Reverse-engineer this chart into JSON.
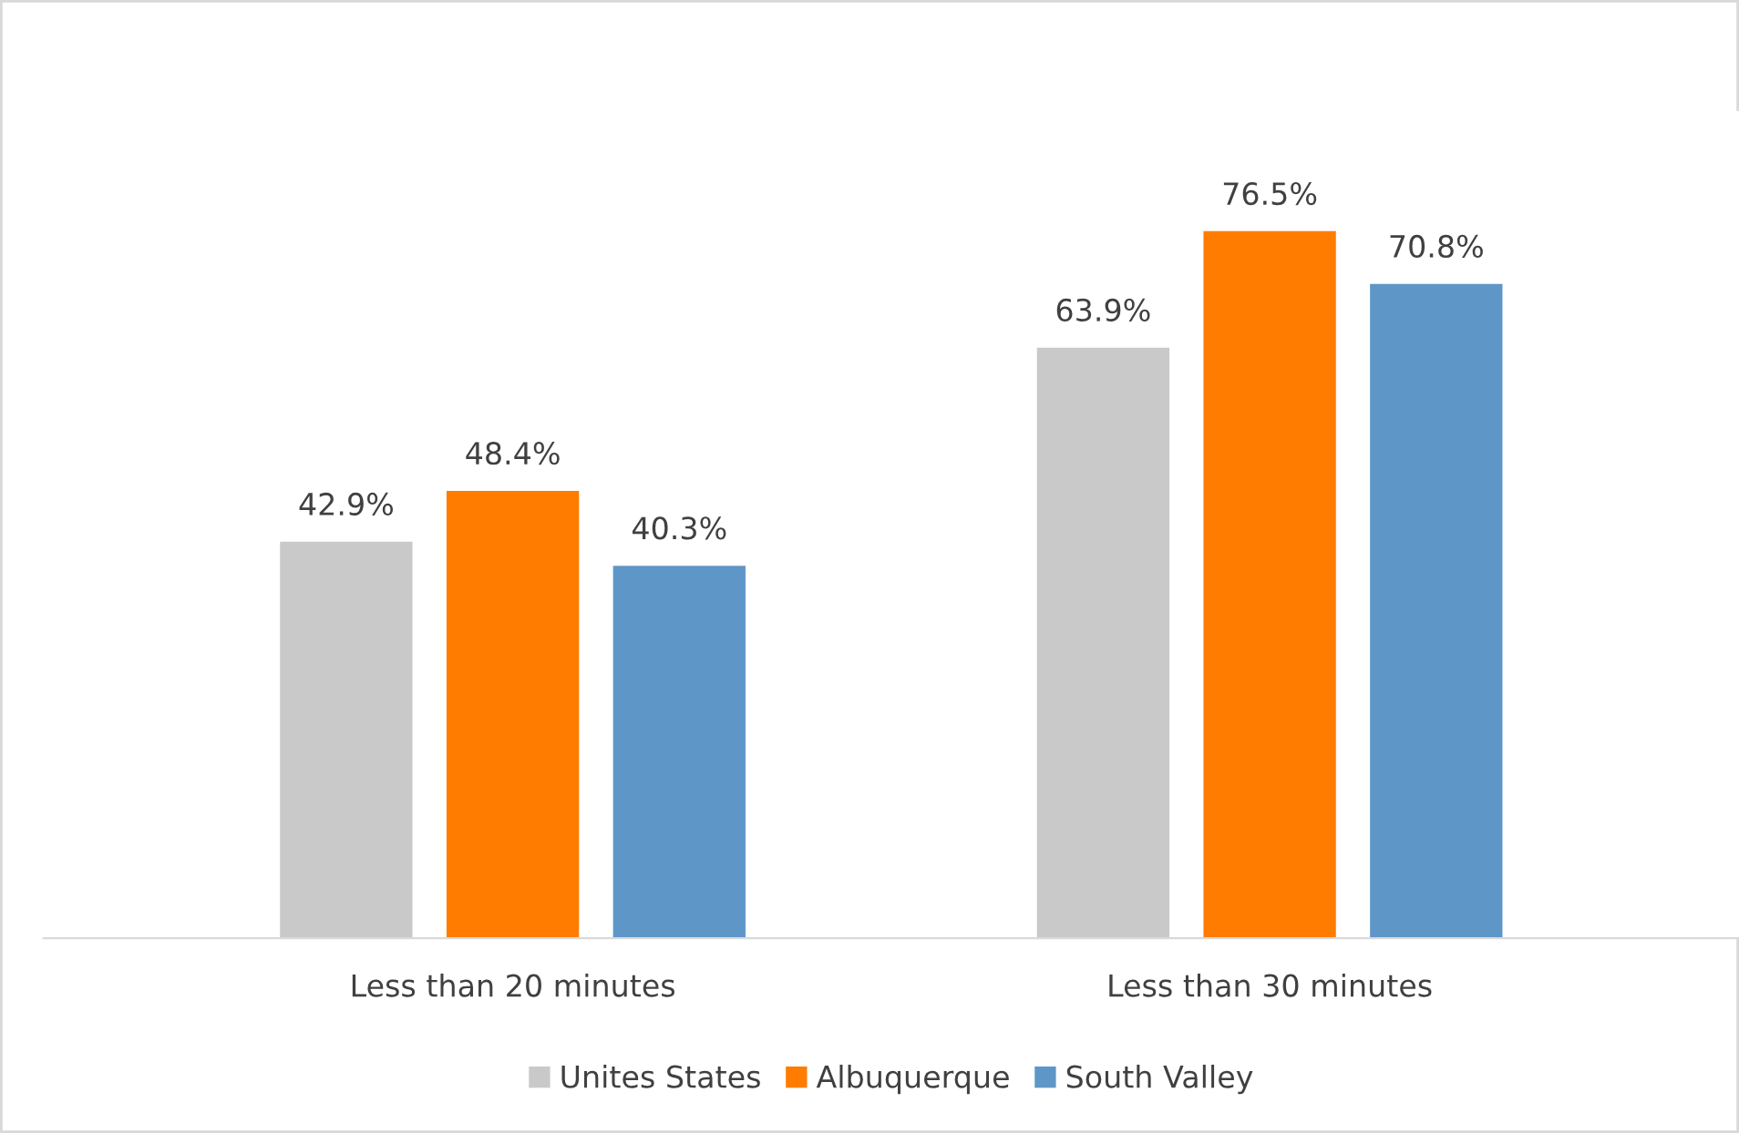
{
  "chart_data": {
    "type": "bar",
    "categories": [
      "Less than 20 minutes",
      "Less than 30 minutes"
    ],
    "series": [
      {
        "name": "Unites States",
        "color": "#c9c9c9",
        "values": [
          42.9,
          63.9
        ],
        "value_labels": [
          "42.9%",
          "63.9%"
        ]
      },
      {
        "name": "Albuquerque",
        "color": "#ff7c00",
        "values": [
          48.4,
          76.5
        ],
        "value_labels": [
          "48.4%",
          "76.5%"
        ]
      },
      {
        "name": "South Valley",
        "color": "#5f96c8",
        "values": [
          40.3,
          70.8
        ],
        "value_labels": [
          "40.3%",
          "70.8%"
        ]
      }
    ],
    "legend": "bottom",
    "grid": false
  }
}
